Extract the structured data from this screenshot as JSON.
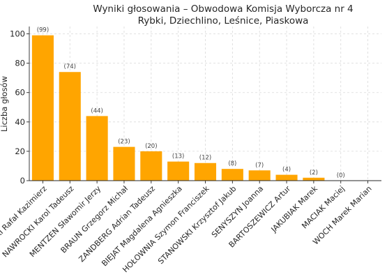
{
  "chart_data": {
    "type": "bar",
    "title_lines": [
      "Wyniki głosowania – Obwodowa Komisja Wyborcza nr 4",
      "Rybki, Dziechlino, Leśnice, Piaskowa"
    ],
    "xlabel": "",
    "ylabel": "Liczba głosów",
    "ylim": [
      0,
      105
    ],
    "yticks": [
      0,
      20,
      40,
      60,
      80,
      100
    ],
    "grid": true,
    "bar_color": "#FFA500",
    "categories": [
      "TRZASKOWSKI Rafał Kazimierz",
      "NAWROCKI Karol Tadeusz",
      "MENTZEN Sławomir Jerzy",
      "BRAUN Grzegorz Michał",
      "ZANDBERG Adrian Tadeusz",
      "BIEJAT Magdalena Agnieszka",
      "HOŁOWNIA Szymon Franciszek",
      "STANOWSKI Krzysztof Jakub",
      "SENYSZYN Joanna",
      "BARTOSZEWICZ Artur",
      "JAKUBIAK Marek",
      "MACIAK Maciej",
      "WOCH Marek Marian"
    ],
    "values": [
      99,
      74,
      44,
      23,
      20,
      13,
      12,
      8,
      7,
      4,
      2,
      0,
      0
    ],
    "value_labels": [
      "(99)",
      "(74)",
      "(44)",
      "(23)",
      "(20)",
      "(13)",
      "(12)",
      "(8)",
      "(7)",
      "(4)",
      "(2)",
      "(0)",
      ""
    ]
  }
}
